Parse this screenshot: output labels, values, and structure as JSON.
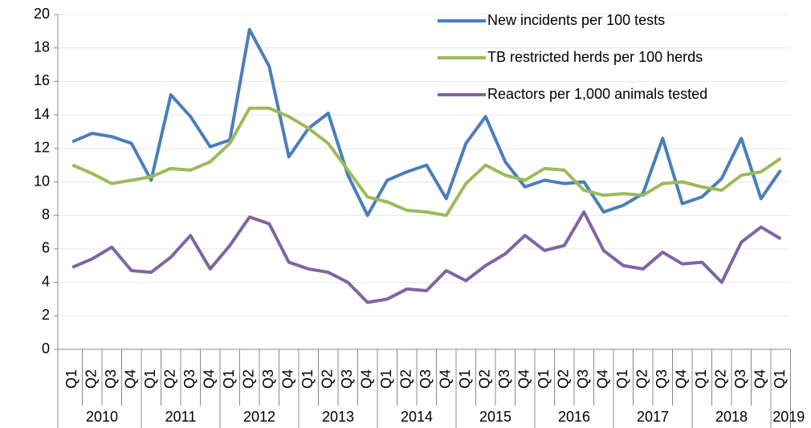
{
  "chart_data": {
    "type": "line",
    "categories": [
      "Q1",
      "Q2",
      "Q3",
      "Q4",
      "Q1",
      "Q2",
      "Q3",
      "Q4",
      "Q1",
      "Q2",
      "Q3",
      "Q4",
      "Q1",
      "Q2",
      "Q3",
      "Q4",
      "Q1",
      "Q2",
      "Q3",
      "Q4",
      "Q1",
      "Q2",
      "Q3",
      "Q4",
      "Q1",
      "Q2",
      "Q3",
      "Q4",
      "Q1",
      "Q2",
      "Q3",
      "Q4",
      "Q1",
      "Q2",
      "Q3",
      "Q4",
      "Q1"
    ],
    "years": [
      "2010",
      "2011",
      "2012",
      "2013",
      "2014",
      "2015",
      "2016",
      "2017",
      "2018",
      "2019"
    ],
    "series": [
      {
        "name": "New incidents per 100 tests",
        "color": "#4a7ebb",
        "values": [
          12.4,
          12.9,
          12.7,
          12.3,
          10.1,
          15.2,
          13.9,
          12.1,
          12.5,
          19.1,
          16.9,
          11.5,
          13.2,
          14.1,
          10.4,
          8.0,
          10.1,
          10.6,
          11.0,
          9.0,
          12.3,
          13.9,
          11.2,
          9.7,
          10.1,
          9.9,
          10.0,
          8.2,
          8.6,
          9.3,
          12.6,
          8.7,
          9.1,
          10.2,
          12.6,
          9.0,
          10.7
        ]
      },
      {
        "name": "TB restricted herds per 100 herds",
        "color": "#9bbb59",
        "values": [
          11.0,
          10.5,
          9.9,
          10.1,
          10.3,
          10.8,
          10.7,
          11.2,
          12.3,
          14.4,
          14.4,
          13.9,
          13.2,
          12.3,
          10.7,
          9.1,
          8.8,
          8.3,
          8.2,
          8.0,
          9.9,
          11.0,
          10.4,
          10.1,
          10.8,
          10.7,
          9.5,
          9.2,
          9.3,
          9.2,
          9.9,
          10.0,
          9.7,
          9.5,
          10.4,
          10.6,
          11.4
        ]
      },
      {
        "name": "Reactors per 1,000 animals tested",
        "color": "#8064a2",
        "values": [
          4.9,
          5.4,
          6.1,
          4.7,
          4.6,
          5.5,
          6.8,
          4.8,
          6.2,
          7.9,
          7.5,
          5.2,
          4.8,
          4.6,
          4.0,
          2.8,
          3.0,
          3.6,
          3.5,
          4.7,
          4.1,
          5.0,
          5.7,
          6.8,
          5.9,
          6.2,
          8.2,
          5.9,
          5.0,
          4.8,
          5.8,
          5.1,
          5.2,
          4.0,
          6.4,
          7.3,
          6.6
        ]
      }
    ],
    "ylim": [
      0,
      20
    ],
    "yticks": [
      0,
      2,
      4,
      6,
      8,
      10,
      12,
      14,
      16,
      18,
      20
    ],
    "grid": true,
    "legend": "top-right"
  }
}
